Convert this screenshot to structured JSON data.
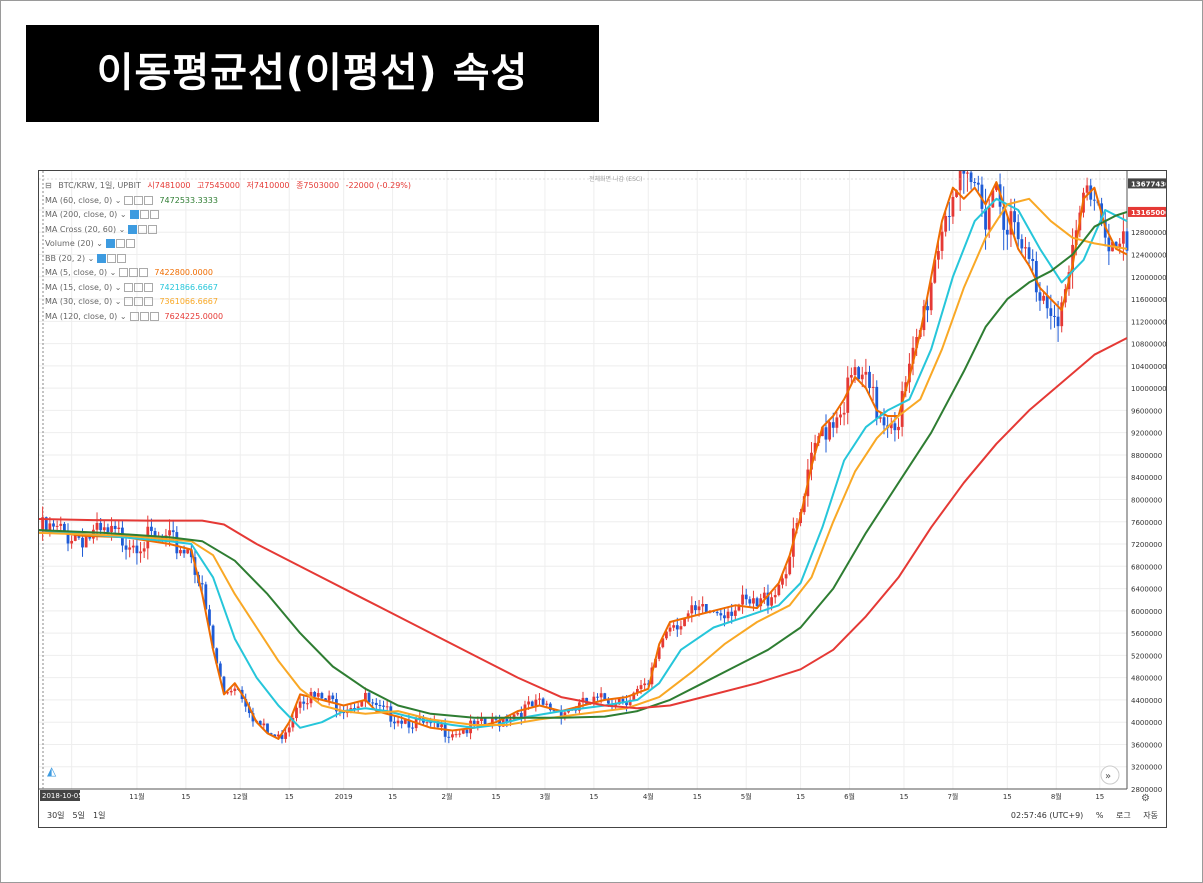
{
  "page_title": "이동평균선(이평선) 속성",
  "header": {
    "symbol": "BTC/KRW, 1일, UPBIT",
    "open": "시7481000",
    "high": "고7545000",
    "low": "저7410000",
    "close": "종7503000",
    "change": "-22000 (-0.29%)",
    "fullscreen_hint": "전체화면 나감 (ESC)"
  },
  "legend": [
    {
      "label": "MA (60, close, 0)",
      "value": "7472533.3333",
      "color": "#2e7d32",
      "blue_btn": false
    },
    {
      "label": "MA (200, close, 0)",
      "value": "",
      "color": "",
      "blue_btn": true
    },
    {
      "label": "MA Cross (20, 60)",
      "value": "",
      "color": "",
      "blue_btn": true
    },
    {
      "label": "Volume (20)",
      "value": "",
      "color": "",
      "blue_btn": true
    },
    {
      "label": "BB (20, 2)",
      "value": "",
      "color": "",
      "blue_btn": true
    },
    {
      "label": "MA (5, close, 0)",
      "value": "7422800.0000",
      "color": "#ef6c00",
      "blue_btn": false
    },
    {
      "label": "MA (15, close, 0)",
      "value": "7421866.6667",
      "color": "#26c6da",
      "blue_btn": false
    },
    {
      "label": "MA (30, close, 0)",
      "value": "7361066.6667",
      "color": "#f9a825",
      "blue_btn": false
    },
    {
      "label": "MA (120, close, 0)",
      "value": "7624225.0000",
      "color": "#e53935",
      "blue_btn": false
    }
  ],
  "bottom": {
    "ranges": [
      "30일",
      "5일",
      "1일"
    ],
    "time": "02:57:46 (UTC+9)",
    "pct": "%",
    "log": "로그",
    "auto": "자동",
    "date_badge": "2018-10-05"
  },
  "chart_data": {
    "type": "line",
    "title": "",
    "y_range": [
      2800000,
      13900000
    ],
    "y_ticks": [
      2800000,
      3200000,
      3600000,
      4000000,
      4400000,
      4800000,
      5200000,
      5600000,
      6000000,
      6400000,
      6800000,
      7200000,
      7600000,
      8000000,
      8400000,
      8800000,
      9200000,
      9600000,
      10000000,
      10400000,
      10800000,
      11200000,
      11600000,
      12000000,
      12400000,
      12800000,
      13200000
    ],
    "x_ticks": [
      {
        "label": "5",
        "t": 0.03
      },
      {
        "label": "11월",
        "t": 0.09
      },
      {
        "label": "15",
        "t": 0.135
      },
      {
        "label": "12월",
        "t": 0.185
      },
      {
        "label": "15",
        "t": 0.23
      },
      {
        "label": "2019",
        "t": 0.28
      },
      {
        "label": "15",
        "t": 0.325
      },
      {
        "label": "2월",
        "t": 0.375
      },
      {
        "label": "15",
        "t": 0.42
      },
      {
        "label": "3월",
        "t": 0.465
      },
      {
        "label": "15",
        "t": 0.51
      },
      {
        "label": "4월",
        "t": 0.56
      },
      {
        "label": "15",
        "t": 0.605
      },
      {
        "label": "5월",
        "t": 0.65
      },
      {
        "label": "15",
        "t": 0.7
      },
      {
        "label": "6월",
        "t": 0.745
      },
      {
        "label": "15",
        "t": 0.795
      },
      {
        "label": "7월",
        "t": 0.84
      },
      {
        "label": "15",
        "t": 0.89
      },
      {
        "label": "8월",
        "t": 0.935
      },
      {
        "label": "15",
        "t": 0.975
      }
    ],
    "price_tags": [
      {
        "value": "13677430",
        "y": 13677430,
        "bg": "#444444"
      },
      {
        "value": "13165000",
        "y": 13165000,
        "bg": "#e53935"
      }
    ],
    "series": [
      {
        "name": "MA (5, close, 0)",
        "color": "#ef6c00",
        "points": [
          [
            0,
            7450000
          ],
          [
            0.04,
            7350000
          ],
          [
            0.08,
            7320000
          ],
          [
            0.12,
            7200000
          ],
          [
            0.14,
            7100000
          ],
          [
            0.15,
            6300000
          ],
          [
            0.16,
            5300000
          ],
          [
            0.17,
            4500000
          ],
          [
            0.18,
            4700000
          ],
          [
            0.19,
            4400000
          ],
          [
            0.2,
            4000000
          ],
          [
            0.21,
            3800000
          ],
          [
            0.22,
            3700000
          ],
          [
            0.23,
            4000000
          ],
          [
            0.24,
            4500000
          ],
          [
            0.26,
            4400000
          ],
          [
            0.28,
            4300000
          ],
          [
            0.3,
            4400000
          ],
          [
            0.31,
            4200000
          ],
          [
            0.33,
            4100000
          ],
          [
            0.36,
            3900000
          ],
          [
            0.38,
            3850000
          ],
          [
            0.4,
            3900000
          ],
          [
            0.42,
            4000000
          ],
          [
            0.44,
            4200000
          ],
          [
            0.46,
            4300000
          ],
          [
            0.48,
            4200000
          ],
          [
            0.5,
            4300000
          ],
          [
            0.52,
            4400000
          ],
          [
            0.54,
            4450000
          ],
          [
            0.56,
            4600000
          ],
          [
            0.57,
            5400000
          ],
          [
            0.58,
            5800000
          ],
          [
            0.6,
            5900000
          ],
          [
            0.62,
            6000000
          ],
          [
            0.64,
            6100000
          ],
          [
            0.66,
            6050000
          ],
          [
            0.68,
            6500000
          ],
          [
            0.69,
            7000000
          ],
          [
            0.7,
            7700000
          ],
          [
            0.71,
            8600000
          ],
          [
            0.72,
            9300000
          ],
          [
            0.73,
            9500000
          ],
          [
            0.74,
            9800000
          ],
          [
            0.75,
            10200000
          ],
          [
            0.76,
            10000000
          ],
          [
            0.77,
            9600000
          ],
          [
            0.78,
            9500000
          ],
          [
            0.79,
            9500000
          ],
          [
            0.8,
            10200000
          ],
          [
            0.81,
            11000000
          ],
          [
            0.82,
            12000000
          ],
          [
            0.83,
            13000000
          ],
          [
            0.84,
            13600000
          ],
          [
            0.85,
            13400000
          ],
          [
            0.86,
            13600000
          ],
          [
            0.87,
            13300000
          ],
          [
            0.88,
            13700000
          ],
          [
            0.9,
            12500000
          ],
          [
            0.91,
            12200000
          ],
          [
            0.92,
            11800000
          ],
          [
            0.93,
            11600000
          ],
          [
            0.94,
            11400000
          ],
          [
            0.95,
            12200000
          ],
          [
            0.96,
            13400000
          ],
          [
            0.97,
            13600000
          ],
          [
            0.98,
            12900000
          ],
          [
            0.99,
            12500000
          ],
          [
            1,
            12400000
          ]
        ]
      },
      {
        "name": "MA (15, close, 0)",
        "color": "#26c6da",
        "points": [
          [
            0,
            7450000
          ],
          [
            0.06,
            7350000
          ],
          [
            0.12,
            7250000
          ],
          [
            0.14,
            7200000
          ],
          [
            0.16,
            6600000
          ],
          [
            0.18,
            5500000
          ],
          [
            0.2,
            4800000
          ],
          [
            0.22,
            4300000
          ],
          [
            0.24,
            3900000
          ],
          [
            0.26,
            4000000
          ],
          [
            0.28,
            4200000
          ],
          [
            0.3,
            4250000
          ],
          [
            0.32,
            4200000
          ],
          [
            0.35,
            4050000
          ],
          [
            0.38,
            3950000
          ],
          [
            0.4,
            3900000
          ],
          [
            0.42,
            3950000
          ],
          [
            0.45,
            4100000
          ],
          [
            0.48,
            4200000
          ],
          [
            0.52,
            4300000
          ],
          [
            0.55,
            4400000
          ],
          [
            0.57,
            4700000
          ],
          [
            0.59,
            5300000
          ],
          [
            0.62,
            5700000
          ],
          [
            0.65,
            5900000
          ],
          [
            0.68,
            6100000
          ],
          [
            0.7,
            6500000
          ],
          [
            0.72,
            7500000
          ],
          [
            0.74,
            8700000
          ],
          [
            0.76,
            9300000
          ],
          [
            0.78,
            9600000
          ],
          [
            0.8,
            9800000
          ],
          [
            0.82,
            10700000
          ],
          [
            0.84,
            12000000
          ],
          [
            0.86,
            13000000
          ],
          [
            0.88,
            13400000
          ],
          [
            0.9,
            13200000
          ],
          [
            0.92,
            12500000
          ],
          [
            0.94,
            11900000
          ],
          [
            0.96,
            12300000
          ],
          [
            0.98,
            13200000
          ],
          [
            1,
            13000000
          ]
        ]
      },
      {
        "name": "MA (30, close, 0)",
        "color": "#f9a825",
        "points": [
          [
            0,
            7400000
          ],
          [
            0.08,
            7350000
          ],
          [
            0.14,
            7250000
          ],
          [
            0.16,
            7000000
          ],
          [
            0.18,
            6300000
          ],
          [
            0.2,
            5700000
          ],
          [
            0.22,
            5100000
          ],
          [
            0.24,
            4600000
          ],
          [
            0.26,
            4300000
          ],
          [
            0.28,
            4200000
          ],
          [
            0.3,
            4150000
          ],
          [
            0.33,
            4200000
          ],
          [
            0.36,
            4050000
          ],
          [
            0.4,
            3950000
          ],
          [
            0.43,
            3950000
          ],
          [
            0.46,
            4050000
          ],
          [
            0.5,
            4150000
          ],
          [
            0.54,
            4250000
          ],
          [
            0.57,
            4450000
          ],
          [
            0.6,
            4900000
          ],
          [
            0.63,
            5400000
          ],
          [
            0.66,
            5800000
          ],
          [
            0.69,
            6100000
          ],
          [
            0.71,
            6600000
          ],
          [
            0.73,
            7600000
          ],
          [
            0.75,
            8500000
          ],
          [
            0.77,
            9100000
          ],
          [
            0.79,
            9500000
          ],
          [
            0.81,
            9800000
          ],
          [
            0.83,
            10700000
          ],
          [
            0.85,
            11800000
          ],
          [
            0.87,
            12700000
          ],
          [
            0.89,
            13300000
          ],
          [
            0.91,
            13400000
          ],
          [
            0.93,
            13000000
          ],
          [
            0.95,
            12700000
          ],
          [
            0.97,
            12600000
          ],
          [
            1,
            12500000
          ]
        ]
      },
      {
        "name": "MA (60, close, 0)",
        "color": "#2e7d32",
        "points": [
          [
            0,
            7450000
          ],
          [
            0.06,
            7400000
          ],
          [
            0.12,
            7320000
          ],
          [
            0.15,
            7250000
          ],
          [
            0.18,
            6900000
          ],
          [
            0.21,
            6300000
          ],
          [
            0.24,
            5600000
          ],
          [
            0.27,
            5000000
          ],
          [
            0.3,
            4600000
          ],
          [
            0.33,
            4300000
          ],
          [
            0.36,
            4150000
          ],
          [
            0.4,
            4080000
          ],
          [
            0.44,
            4080000
          ],
          [
            0.48,
            4080000
          ],
          [
            0.52,
            4100000
          ],
          [
            0.55,
            4200000
          ],
          [
            0.58,
            4400000
          ],
          [
            0.61,
            4700000
          ],
          [
            0.64,
            5000000
          ],
          [
            0.67,
            5300000
          ],
          [
            0.7,
            5700000
          ],
          [
            0.73,
            6400000
          ],
          [
            0.76,
            7400000
          ],
          [
            0.79,
            8300000
          ],
          [
            0.82,
            9200000
          ],
          [
            0.85,
            10300000
          ],
          [
            0.87,
            11100000
          ],
          [
            0.89,
            11600000
          ],
          [
            0.91,
            11900000
          ],
          [
            0.93,
            12100000
          ],
          [
            0.95,
            12400000
          ],
          [
            0.97,
            12900000
          ],
          [
            0.99,
            13100000
          ],
          [
            1,
            13165000
          ]
        ]
      },
      {
        "name": "MA (120, close, 0)",
        "color": "#e53935",
        "points": [
          [
            0,
            7650000
          ],
          [
            0.05,
            7630000
          ],
          [
            0.1,
            7620000
          ],
          [
            0.15,
            7620000
          ],
          [
            0.17,
            7550000
          ],
          [
            0.2,
            7200000
          ],
          [
            0.25,
            6700000
          ],
          [
            0.3,
            6200000
          ],
          [
            0.35,
            5700000
          ],
          [
            0.4,
            5200000
          ],
          [
            0.44,
            4800000
          ],
          [
            0.48,
            4450000
          ],
          [
            0.52,
            4300000
          ],
          [
            0.55,
            4250000
          ],
          [
            0.58,
            4300000
          ],
          [
            0.62,
            4500000
          ],
          [
            0.66,
            4700000
          ],
          [
            0.7,
            4950000
          ],
          [
            0.73,
            5300000
          ],
          [
            0.76,
            5900000
          ],
          [
            0.79,
            6600000
          ],
          [
            0.82,
            7500000
          ],
          [
            0.85,
            8300000
          ],
          [
            0.88,
            9000000
          ],
          [
            0.91,
            9600000
          ],
          [
            0.94,
            10100000
          ],
          [
            0.97,
            10600000
          ],
          [
            1,
            10900000
          ]
        ]
      }
    ]
  }
}
